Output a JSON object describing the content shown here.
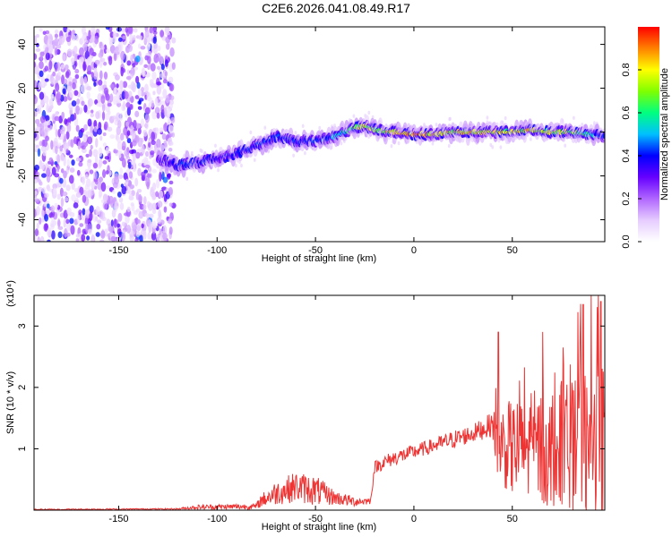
{
  "title": "C2E6.2026.041.08.49.R17",
  "chart_data": [
    {
      "type": "heatmap",
      "title": "C2E6.2026.041.08.49.R17",
      "xlabel": "Height of straight line (km)",
      "ylabel": "Frequency (Hz)",
      "xlim": [
        -193,
        97
      ],
      "ylim": [
        -50,
        48
      ],
      "x_ticks": [
        -150,
        -100,
        -50,
        0,
        50
      ],
      "y_ticks": [
        -40,
        -20,
        0,
        20,
        40
      ],
      "colorbar": {
        "label": "Normalized spectral amplitude",
        "range": [
          0.0,
          1.0
        ],
        "ticks": [
          0.0,
          0.2,
          0.4,
          0.6,
          0.8
        ],
        "colormap": [
          "#ffffff",
          "#e6ccff",
          "#b066ff",
          "#6600ff",
          "#0000ff",
          "#00c0ff",
          "#00ff80",
          "#80ff00",
          "#ffff00",
          "#ff8000",
          "#ff0000"
        ]
      },
      "ridge": {
        "x": [
          -130,
          -120,
          -110,
          -100,
          -90,
          -80,
          -70,
          -60,
          -50,
          -40,
          -30,
          -25,
          -20,
          -10,
          0,
          10,
          20,
          30,
          40,
          50,
          60,
          70,
          80,
          90,
          95
        ],
        "y": [
          -12,
          -15,
          -14,
          -12,
          -10,
          -6,
          -2,
          -4,
          -4,
          -2,
          2,
          3,
          1,
          0,
          -1,
          -1,
          0,
          0,
          0,
          0,
          1,
          0,
          0,
          -1,
          -2
        ],
        "amplitude": [
          0.3,
          0.45,
          0.45,
          0.4,
          0.45,
          0.45,
          0.45,
          0.45,
          0.45,
          0.55,
          0.75,
          0.9,
          0.8,
          0.9,
          1.0,
          0.95,
          0.9,
          0.9,
          0.85,
          0.85,
          0.9,
          0.85,
          0.8,
          0.6,
          0.5
        ]
      },
      "noise_region_x": [
        -193,
        -122
      ],
      "noise_amplitude": 0.2
    },
    {
      "type": "line",
      "xlabel": "Height of straight line (km)",
      "ylabel": "SNR (10 * v/v)",
      "y_multiplier": "(x10⁴)",
      "xlim": [
        -193,
        97
      ],
      "ylim": [
        0,
        3.5
      ],
      "x_ticks": [
        -150,
        -100,
        -50,
        0,
        50
      ],
      "y_ticks": [
        1,
        2,
        3
      ],
      "color": "#ee3333",
      "envelope": {
        "x": [
          -193,
          -120,
          -110,
          -80,
          -78,
          -70,
          -60,
          -50,
          -40,
          -30,
          -22,
          -20,
          -15,
          -10,
          0,
          10,
          20,
          30,
          40,
          42,
          50,
          60,
          70,
          80,
          90,
          97
        ],
        "mean": [
          0.01,
          0.02,
          0.05,
          0.06,
          0.15,
          0.28,
          0.38,
          0.32,
          0.2,
          0.14,
          0.15,
          0.7,
          0.78,
          0.85,
          0.95,
          1.05,
          1.15,
          1.25,
          1.4,
          1.1,
          1.0,
          1.0,
          1.0,
          1.0,
          1.0,
          1.0
        ],
        "spread": [
          0.01,
          0.01,
          0.04,
          0.05,
          0.1,
          0.2,
          0.25,
          0.25,
          0.12,
          0.08,
          0.05,
          0.1,
          0.12,
          0.12,
          0.12,
          0.12,
          0.15,
          0.15,
          0.2,
          0.6,
          0.8,
          0.9,
          1.0,
          1.1,
          1.2,
          1.4
        ]
      },
      "peaks": [
        {
          "x": 43,
          "y": 2.9
        },
        {
          "x": 76,
          "y": 2.65
        },
        {
          "x": 86,
          "y": 3.35
        },
        {
          "x": 95,
          "y": 3.4
        }
      ]
    }
  ]
}
